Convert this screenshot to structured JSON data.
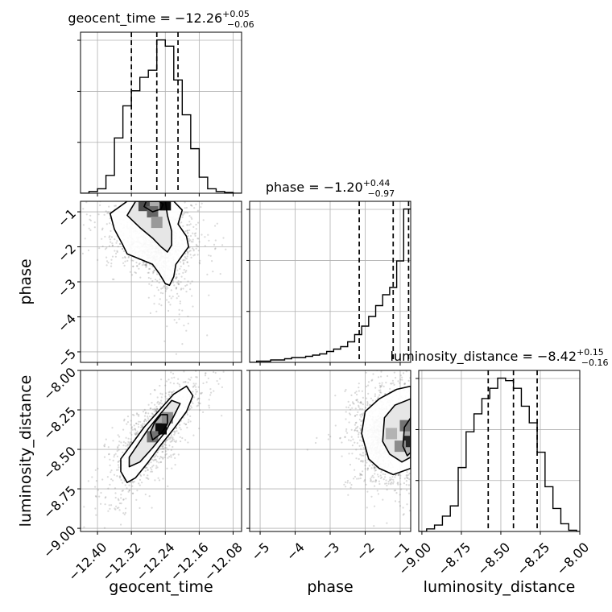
{
  "chart_data": {
    "type": "corner",
    "parameters": [
      "geocent_time",
      "phase",
      "luminosity_distance"
    ],
    "titles": [
      {
        "param": "geocent_time",
        "median": "−12.26",
        "plus": "+0.05",
        "minus": "−0.06"
      },
      {
        "param": "phase",
        "median": "−1.20",
        "plus": "+0.44",
        "minus": "−0.97"
      },
      {
        "param": "luminosity_distance",
        "median": "−8.42",
        "plus": "+0.15",
        "minus": "−0.16"
      }
    ],
    "axes": {
      "geocent_time": {
        "range": [
          -12.44,
          -12.06
        ],
        "ticks": [
          -12.4,
          -12.32,
          -12.24,
          -12.16,
          -12.08
        ],
        "tick_labels": [
          "−12.40",
          "−12.32",
          "−12.24",
          "−12.16",
          "−12.08"
        ]
      },
      "phase": {
        "range": [
          -5.3,
          -0.7
        ],
        "ticks": [
          -5,
          -4,
          -3,
          -2,
          -1
        ],
        "tick_labels": [
          "−5",
          "−4",
          "−3",
          "−2",
          "−1"
        ]
      },
      "luminosity_distance": {
        "range": [
          -9.02,
          -8.0
        ],
        "ticks": [
          -9.0,
          -8.75,
          -8.5,
          -8.25,
          -8.0
        ],
        "tick_labels": [
          "−9.00",
          "−8.75",
          "−8.50",
          "−8.25",
          "−8.00"
        ]
      }
    },
    "histograms": [
      {
        "param": "geocent_time",
        "bin_edges": [
          -12.44,
          -12.42,
          -12.4,
          -12.38,
          -12.36,
          -12.34,
          -12.32,
          -12.3,
          -12.28,
          -12.26,
          -12.24,
          -12.22,
          -12.2,
          -12.18,
          -12.16,
          -12.14,
          -12.12,
          -12.1,
          -12.08,
          -12.06
        ],
        "counts": [
          0,
          2,
          5,
          20,
          62,
          98,
          115,
          130,
          138,
          172,
          165,
          127,
          88,
          50,
          18,
          5,
          2,
          1,
          0
        ],
        "quantiles": [
          -12.32,
          -12.26,
          -12.21
        ]
      },
      {
        "param": "phase",
        "bin_edges": [
          -5.3,
          -5.1,
          -4.9,
          -4.7,
          -4.5,
          -4.3,
          -4.1,
          -3.9,
          -3.7,
          -3.5,
          -3.3,
          -3.1,
          -2.9,
          -2.7,
          -2.5,
          -2.3,
          -2.1,
          -1.9,
          -1.7,
          -1.5,
          -1.3,
          -1.1,
          -0.9,
          -0.7
        ],
        "counts": [
          0,
          1,
          1,
          2,
          2,
          3,
          4,
          4,
          5,
          6,
          7,
          9,
          11,
          13,
          17,
          23,
          30,
          38,
          47,
          56,
          62,
          84,
          127
        ],
        "quantiles": [
          -2.17,
          -1.2,
          -0.76
        ]
      },
      {
        "param": "luminosity_distance",
        "bin_edges": [
          -9.02,
          -8.97,
          -8.92,
          -8.87,
          -8.82,
          -8.77,
          -8.72,
          -8.67,
          -8.62,
          -8.57,
          -8.52,
          -8.47,
          -8.42,
          -8.37,
          -8.32,
          -8.27,
          -8.22,
          -8.17,
          -8.12,
          -8.07,
          -8.02,
          -8.0
        ],
        "counts": [
          0,
          2,
          5,
          12,
          20,
          50,
          78,
          92,
          104,
          112,
          120,
          118,
          112,
          98,
          85,
          62,
          35,
          18,
          6,
          1,
          0
        ],
        "quantiles": [
          -8.58,
          -8.42,
          -8.27
        ]
      }
    ],
    "contours": [
      {
        "x": "geocent_time",
        "y": "phase",
        "levels": [
          [
            [
              -12.33,
              -0.7
            ],
            [
              -12.37,
              -1.05
            ],
            [
              -12.36,
              -1.5
            ],
            [
              -12.34,
              -1.95
            ],
            [
              -12.33,
              -2.2
            ],
            [
              -12.3,
              -2.35
            ],
            [
              -12.27,
              -2.5
            ],
            [
              -12.255,
              -2.75
            ],
            [
              -12.24,
              -3.05
            ],
            [
              -12.23,
              -3.1
            ],
            [
              -12.22,
              -2.85
            ],
            [
              -12.215,
              -2.5
            ],
            [
              -12.2,
              -2.25
            ],
            [
              -12.185,
              -2.0
            ],
            [
              -12.19,
              -1.7
            ],
            [
              -12.21,
              -1.35
            ],
            [
              -12.2,
              -0.95
            ],
            [
              -12.22,
              -0.7
            ]
          ],
          [
            [
              -12.31,
              -0.7
            ],
            [
              -12.33,
              -1.1
            ],
            [
              -12.3,
              -1.45
            ],
            [
              -12.27,
              -1.75
            ],
            [
              -12.25,
              -2.0
            ],
            [
              -12.235,
              -2.15
            ],
            [
              -12.225,
              -1.95
            ],
            [
              -12.225,
              -1.55
            ],
            [
              -12.235,
              -1.1
            ],
            [
              -12.24,
              -0.7
            ]
          ],
          [
            [
              -12.285,
              -0.7
            ],
            [
              -12.29,
              -0.85
            ],
            [
              -12.27,
              -1.0
            ],
            [
              -12.25,
              -0.92
            ],
            [
              -12.245,
              -0.78
            ],
            [
              -12.255,
              -0.7
            ]
          ]
        ]
      },
      {
        "x": "geocent_time",
        "y": "luminosity_distance",
        "levels": [
          [
            [
              -12.345,
              -8.64
            ],
            [
              -12.33,
              -8.71
            ],
            [
              -12.31,
              -8.68
            ],
            [
              -12.28,
              -8.58
            ],
            [
              -12.25,
              -8.47
            ],
            [
              -12.22,
              -8.37
            ],
            [
              -12.19,
              -8.26
            ],
            [
              -12.175,
              -8.16
            ],
            [
              -12.19,
              -8.1
            ],
            [
              -12.22,
              -8.15
            ],
            [
              -12.25,
              -8.24
            ],
            [
              -12.29,
              -8.36
            ],
            [
              -12.32,
              -8.47
            ],
            [
              -12.345,
              -8.56
            ]
          ],
          [
            [
              -12.325,
              -8.61
            ],
            [
              -12.3,
              -8.58
            ],
            [
              -12.27,
              -8.49
            ],
            [
              -12.24,
              -8.39
            ],
            [
              -12.22,
              -8.29
            ],
            [
              -12.205,
              -8.21
            ],
            [
              -12.225,
              -8.19
            ],
            [
              -12.25,
              -8.27
            ],
            [
              -12.28,
              -8.37
            ],
            [
              -12.305,
              -8.47
            ],
            [
              -12.325,
              -8.55
            ]
          ],
          [
            [
              -12.27,
              -8.44
            ],
            [
              -12.25,
              -8.4
            ],
            [
              -12.235,
              -8.34
            ],
            [
              -12.235,
              -8.28
            ],
            [
              -12.25,
              -8.28
            ],
            [
              -12.265,
              -8.33
            ],
            [
              -12.275,
              -8.39
            ]
          ]
        ]
      },
      {
        "x": "phase",
        "y": "luminosity_distance",
        "levels": [
          [
            [
              -0.7,
              -8.1
            ],
            [
              -1.1,
              -8.12
            ],
            [
              -1.6,
              -8.18
            ],
            [
              -2.0,
              -8.26
            ],
            [
              -2.1,
              -8.4
            ],
            [
              -1.9,
              -8.56
            ],
            [
              -1.6,
              -8.62
            ],
            [
              -1.2,
              -8.66
            ],
            [
              -0.7,
              -8.62
            ]
          ],
          [
            [
              -0.7,
              -8.18
            ],
            [
              -1.15,
              -8.22
            ],
            [
              -1.45,
              -8.3
            ],
            [
              -1.5,
              -8.45
            ],
            [
              -1.3,
              -8.53
            ],
            [
              -0.95,
              -8.58
            ],
            [
              -0.7,
              -8.55
            ]
          ],
          [
            [
              -0.7,
              -8.3
            ],
            [
              -0.88,
              -8.36
            ],
            [
              -0.92,
              -8.48
            ],
            [
              -0.8,
              -8.54
            ],
            [
              -0.7,
              -8.52
            ]
          ]
        ]
      }
    ],
    "density_peaks": [
      {
        "x": "geocent_time",
        "y": "phase",
        "peaks": [
          [
            -12.24,
            -0.8,
            0.95
          ],
          [
            -12.29,
            -0.82,
            0.7
          ],
          [
            -12.27,
            -1.0,
            0.6
          ],
          [
            -12.26,
            -1.3,
            0.4
          ]
        ]
      },
      {
        "x": "geocent_time",
        "y": "luminosity_distance",
        "peaks": [
          [
            -12.25,
            -8.37,
            0.95
          ],
          [
            -12.27,
            -8.42,
            0.55
          ],
          [
            -12.235,
            -8.3,
            0.45
          ]
        ]
      },
      {
        "x": "phase",
        "y": "luminosity_distance",
        "peaks": [
          [
            -0.75,
            -8.45,
            0.85
          ],
          [
            -0.85,
            -8.35,
            0.55
          ],
          [
            -1.0,
            -8.48,
            0.45
          ],
          [
            -1.25,
            -8.4,
            0.3
          ]
        ]
      }
    ],
    "grid": true,
    "colors": {
      "line": "#000000",
      "grid": "#b0b0b0",
      "points": "#7a7a7a"
    }
  }
}
